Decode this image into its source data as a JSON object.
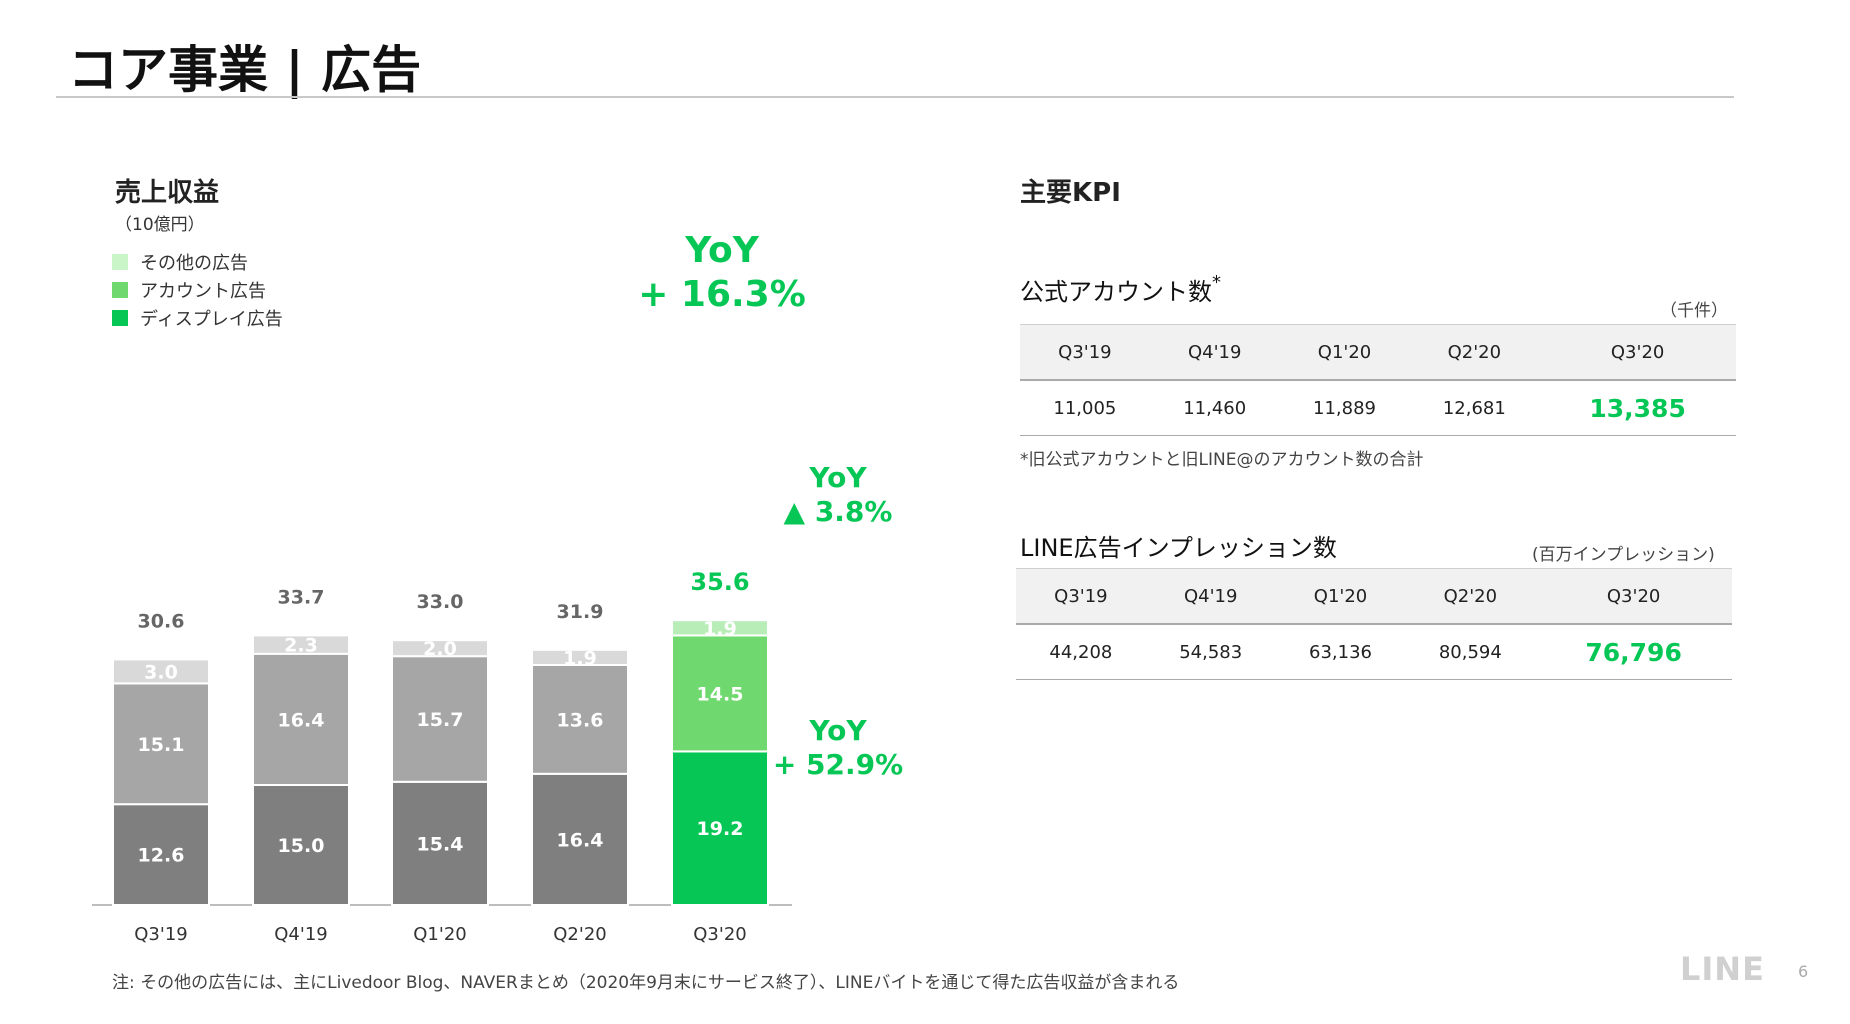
{
  "title": "コア事業 | 広告",
  "chart": {
    "title": "売上収益",
    "unit": "（10億円）",
    "legend": [
      {
        "label": "その他の広告",
        "color": "#c9f5c9"
      },
      {
        "label": "アカウント広告",
        "color": "#6fd96f"
      },
      {
        "label": "ディスプレイ広告",
        "color": "#06c755"
      }
    ]
  },
  "chart_data": {
    "type": "bar",
    "stacked": true,
    "categories": [
      "Q3'19",
      "Q4'19",
      "Q1'20",
      "Q2'20",
      "Q3'20"
    ],
    "series": [
      {
        "name": "ディスプレイ広告",
        "values": [
          12.6,
          15.0,
          15.4,
          16.4,
          19.2
        ],
        "label_text": [
          "12.6",
          "15.0",
          "15.4",
          "16.4",
          "19.2"
        ]
      },
      {
        "name": "アカウント広告",
        "values": [
          15.1,
          16.4,
          15.7,
          13.6,
          14.5
        ],
        "label_text": [
          "15.1",
          "16.4",
          "15.7",
          "13.6",
          "14.5"
        ]
      },
      {
        "name": "その他の広告",
        "values": [
          3.0,
          2.3,
          2.0,
          1.9,
          1.9
        ],
        "label_text": [
          "3.0",
          "2.3",
          "2.0",
          "1.9",
          "1.9"
        ]
      }
    ],
    "totals": [
      "30.6",
      "33.7",
      "33.0",
      "31.9",
      "35.6"
    ],
    "highlight_index": 4,
    "colors": {
      "past_segments": [
        "#7f7f7f",
        "#a6a6a6",
        "#d9d9d9"
      ],
      "highlight_segments": [
        "#06c755",
        "#6fd96f",
        "#b8edb8"
      ],
      "accent": "#06c755"
    },
    "annotations": {
      "total_yoy": [
        "YoY",
        "+ 16.3%"
      ],
      "account_yoy": [
        "YoY",
        "▲ 3.8%"
      ],
      "display_yoy": [
        "YoY",
        "+ 52.9%"
      ]
    }
  },
  "kpi": {
    "title": "主要KPI",
    "table1": {
      "label": "公式アカウント数",
      "label_mark": "*",
      "unit": "（千件）",
      "headers": [
        "Q3'19",
        "Q4'19",
        "Q1'20",
        "Q2'20",
        "Q3'20"
      ],
      "values": [
        "11,005",
        "11,460",
        "11,889",
        "12,681",
        "13,385"
      ]
    },
    "note": "*旧公式アカウントと旧LINE@のアカウント数の合計",
    "table2": {
      "label": "LINE広告インプレッション数",
      "unit": "(百万インプレッション)",
      "headers": [
        "Q3'19",
        "Q4'19",
        "Q1'20",
        "Q2'20",
        "Q3'20"
      ],
      "values": [
        "44,208",
        "54,583",
        "63,136",
        "80,594",
        "76,796"
      ]
    }
  },
  "footnote": "注: その他の広告には、主にLivedoor Blog、NAVERまとめ（2020年9月末にサービス終了）、LINEバイトを通じて得た広告収益が含まれる",
  "logo": "LINE",
  "page_number": "6"
}
